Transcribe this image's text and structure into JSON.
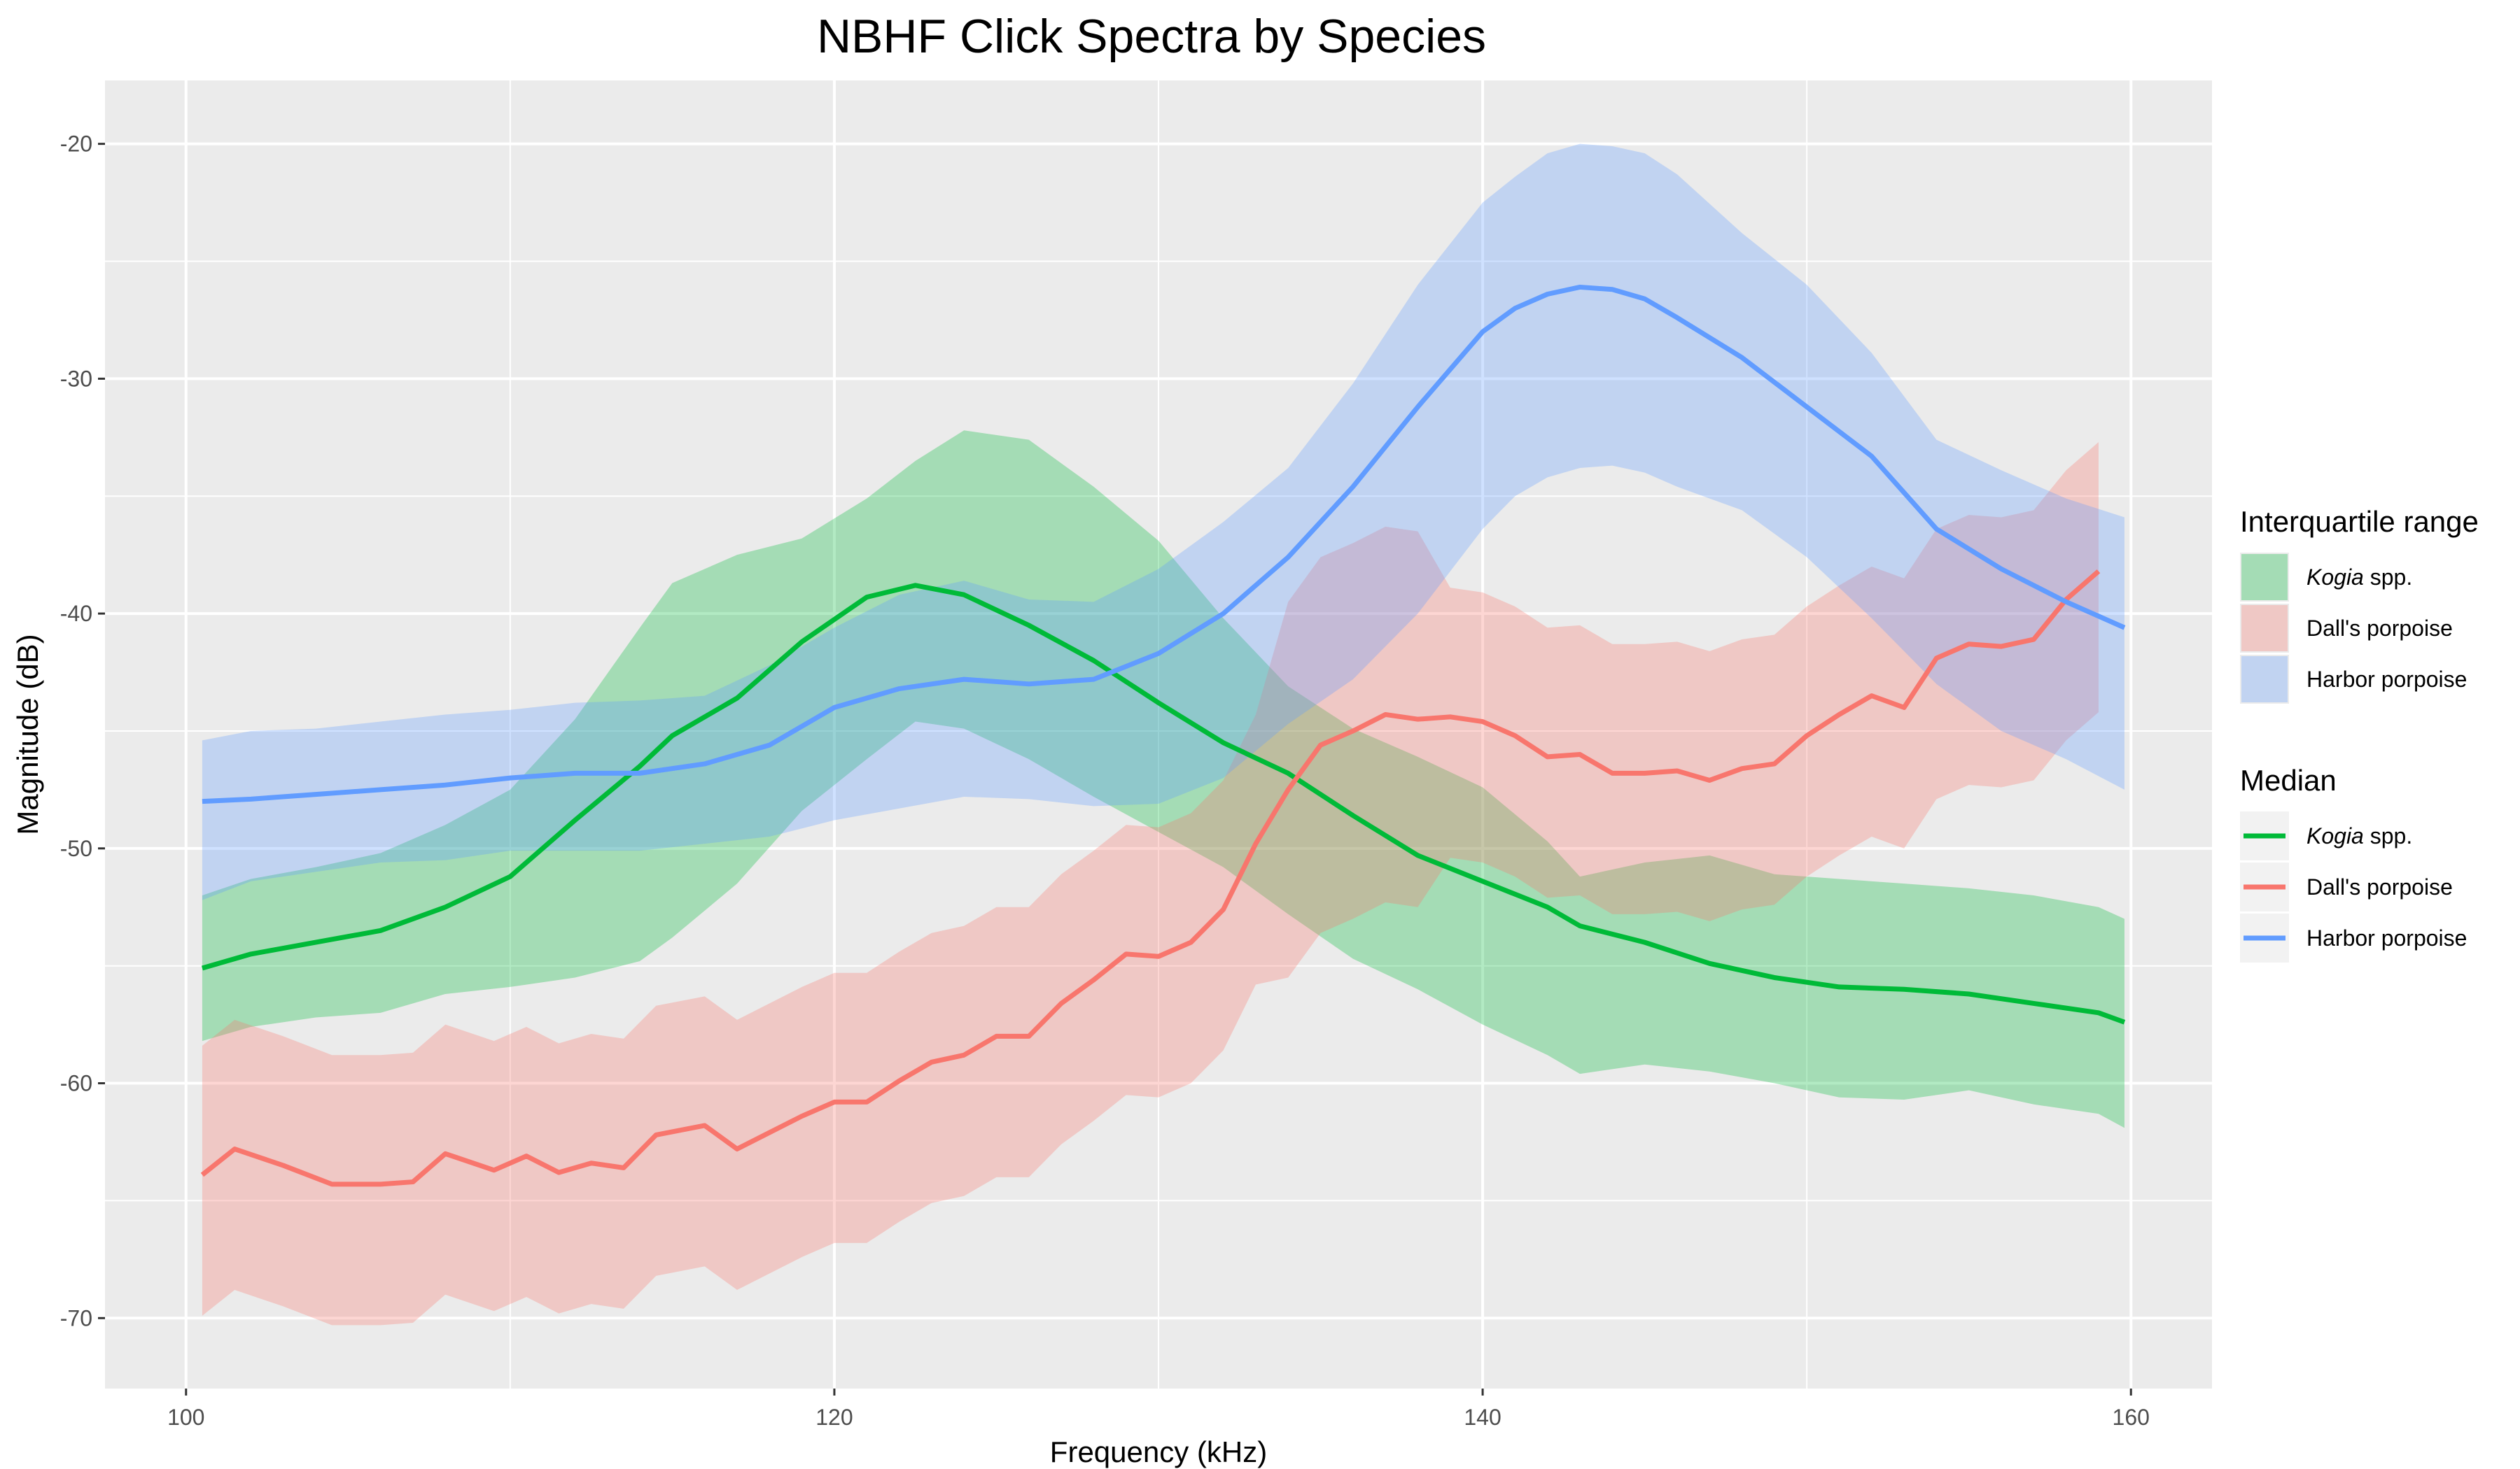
{
  "chart_data": {
    "type": "line",
    "title": "NBHF Click Spectra by Species",
    "xlabel": "Frequency (kHz)",
    "ylabel": "Magnitude (dB)",
    "xlim": [
      97.5,
      162.5
    ],
    "ylim": [
      -73,
      -17.3
    ],
    "x_ticks": [
      100,
      120,
      140,
      160
    ],
    "y_ticks": [
      -70,
      -60,
      -50,
      -40,
      -30,
      -20
    ],
    "grid": true,
    "legend_position": "right",
    "legend": {
      "ribbon_title": "Interquartile range",
      "line_title": "Median",
      "entries": [
        {
          "name_italic": "Kogia",
          "name_rest": " spp."
        },
        {
          "name_italic": "",
          "name_rest": "Dall's porpoise"
        },
        {
          "name_italic": "",
          "name_rest": "Harbor porpoise"
        }
      ]
    },
    "colors": {
      "kogia": "#00BA38",
      "dalls": "#F8766D",
      "harbor": "#619CFF",
      "panel": "#EBEBEB",
      "grid": "#FFFFFF"
    },
    "series": [
      {
        "key": "kogia",
        "x": [
          100.5,
          102,
          104,
          106,
          108,
          110,
          112,
          114,
          115,
          117,
          119,
          121,
          122.5,
          124,
          126,
          128,
          130,
          132,
          134,
          136,
          138,
          140,
          142,
          143,
          145,
          147,
          149,
          151,
          153,
          155,
          157,
          159,
          159.8
        ],
        "median": [
          -55.1,
          -54.5,
          -54.0,
          -53.5,
          -52.5,
          -51.2,
          -48.8,
          -46.5,
          -45.2,
          -43.6,
          -41.2,
          -39.3,
          -38.8,
          -39.2,
          -40.5,
          -42.0,
          -43.8,
          -45.5,
          -46.8,
          -48.6,
          -50.3,
          -51.4,
          -52.5,
          -53.3,
          -54.0,
          -54.9,
          -55.5,
          -55.9,
          -56.0,
          -56.2,
          -56.6,
          -57.0,
          -57.4
        ],
        "q1": [
          -58.2,
          -57.6,
          -57.2,
          -57.0,
          -56.2,
          -55.9,
          -55.5,
          -54.8,
          -53.8,
          -51.5,
          -48.4,
          -46.2,
          -44.6,
          -44.9,
          -46.2,
          -47.8,
          -49.3,
          -50.8,
          -52.8,
          -54.7,
          -56.0,
          -57.5,
          -58.8,
          -59.6,
          -59.2,
          -59.5,
          -60.0,
          -60.6,
          -60.7,
          -60.3,
          -60.9,
          -61.3,
          -61.9
        ],
        "q3": [
          -52.0,
          -51.3,
          -50.8,
          -50.2,
          -49.0,
          -47.5,
          -44.5,
          -40.6,
          -38.7,
          -37.5,
          -36.8,
          -35.1,
          -33.5,
          -32.2,
          -32.6,
          -34.6,
          -36.9,
          -40.2,
          -43.1,
          -44.9,
          -46.1,
          -47.4,
          -49.7,
          -51.2,
          -50.6,
          -50.3,
          -51.1,
          -51.3,
          -51.5,
          -51.7,
          -52.0,
          -52.5,
          -53.0
        ]
      },
      {
        "key": "dalls",
        "x": [
          100.5,
          101.5,
          103,
          104.5,
          106,
          107,
          108,
          109.5,
          110.5,
          111.5,
          112.5,
          113.5,
          114.5,
          116,
          117,
          118,
          119,
          120,
          121,
          122,
          123,
          124,
          125,
          126,
          127,
          128,
          129,
          130,
          131,
          132,
          133,
          134,
          135,
          136,
          137,
          138,
          139,
          140,
          141,
          142,
          143,
          144,
          145,
          146,
          147,
          148,
          149,
          150,
          151,
          152,
          153,
          154,
          155,
          156,
          157,
          158,
          159
        ],
        "median": [
          -63.9,
          -62.8,
          -63.5,
          -64.3,
          -64.3,
          -64.2,
          -63.0,
          -63.7,
          -63.1,
          -63.8,
          -63.4,
          -63.6,
          -62.2,
          -61.8,
          -62.8,
          -62.1,
          -61.4,
          -60.8,
          -60.8,
          -59.9,
          -59.1,
          -58.8,
          -58.0,
          -58.0,
          -56.6,
          -55.6,
          -54.5,
          -54.6,
          -54.0,
          -52.6,
          -49.8,
          -47.5,
          -45.6,
          -45.0,
          -44.3,
          -44.5,
          -44.4,
          -44.6,
          -45.2,
          -46.1,
          -46.0,
          -46.8,
          -46.8,
          -46.7,
          -47.1,
          -46.6,
          -46.4,
          -45.2,
          -44.3,
          -43.5,
          -44.0,
          -41.9,
          -41.3,
          -41.4,
          -41.1,
          -39.4,
          -38.2
        ]
      },
      {
        "key": "harbor",
        "x": [
          100.5,
          102,
          104,
          106,
          108,
          110,
          112,
          114,
          116,
          118,
          120,
          122,
          124,
          126,
          128,
          130,
          132,
          134,
          136,
          138,
          140,
          141,
          142,
          143,
          144,
          145,
          146,
          148,
          150,
          152,
          154,
          156,
          158,
          159.8
        ],
        "median": [
          -48.0,
          -47.9,
          -47.7,
          -47.5,
          -47.3,
          -47.0,
          -46.8,
          -46.8,
          -46.4,
          -45.6,
          -44.0,
          -43.2,
          -42.8,
          -43.0,
          -42.8,
          -41.7,
          -40.0,
          -37.6,
          -34.6,
          -31.2,
          -28.0,
          -27.0,
          -26.4,
          -26.1,
          -26.2,
          -26.6,
          -27.4,
          -29.1,
          -31.2,
          -33.3,
          -36.4,
          -38.1,
          -39.5,
          -40.6
        ],
        "q1": [
          -52.2,
          -51.4,
          -51.0,
          -50.6,
          -50.5,
          -50.1,
          -50.1,
          -50.1,
          -49.8,
          -49.5,
          -48.8,
          -48.3,
          -47.8,
          -47.9,
          -48.2,
          -48.1,
          -47.0,
          -44.7,
          -42.8,
          -40.0,
          -36.4,
          -35.0,
          -34.2,
          -33.8,
          -33.7,
          -34.0,
          -34.6,
          -35.6,
          -37.6,
          -40.2,
          -43.0,
          -45.0,
          -46.2,
          -47.5
        ],
        "q3": [
          -45.4,
          -45.0,
          -44.9,
          -44.6,
          -44.3,
          -44.1,
          -43.8,
          -43.7,
          -43.5,
          -42.2,
          -40.6,
          -39.2,
          -38.6,
          -39.4,
          -39.5,
          -38.1,
          -36.1,
          -33.8,
          -30.2,
          -26.0,
          -22.5,
          -21.4,
          -20.4,
          -20.0,
          -20.1,
          -20.4,
          -21.3,
          -23.8,
          -26.0,
          -28.9,
          -32.6,
          -33.9,
          -35.1,
          -35.9
        ]
      }
    ]
  }
}
